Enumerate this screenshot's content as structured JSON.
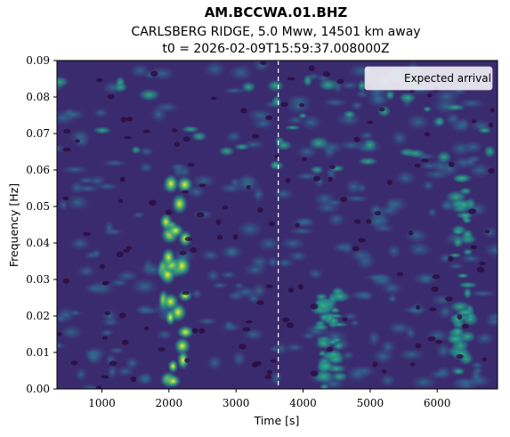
{
  "chart_data": {
    "type": "heatmap",
    "title": "AM.BCCWA.01.BHZ",
    "subtitle_line1": "CARLSBERG RIDGE, 5.0 Mww, 14501 km away",
    "subtitle_line2": "t0 = 2026-02-09T15:59:37.008000Z",
    "xlabel": "Time [s]",
    "ylabel": "Frequency [Hz]",
    "xlim": [
      330,
      6900
    ],
    "ylim": [
      0,
      0.09
    ],
    "x_ticks": [
      1000,
      2000,
      3000,
      4000,
      5000,
      6000
    ],
    "x_tick_labels": [
      "1000",
      "2000",
      "3000",
      "4000",
      "5000",
      "6000"
    ],
    "y_ticks": [
      0,
      0.01,
      0.02,
      0.03,
      0.04,
      0.05,
      0.06,
      0.07,
      0.08,
      0.09
    ],
    "y_tick_labels": [
      "0.00",
      "0.01",
      "0.02",
      "0.03",
      "0.04",
      "0.05",
      "0.06",
      "0.07",
      "0.08",
      "0.09"
    ],
    "colormap": "viridis",
    "grid": false,
    "expected_arrival": {
      "time": 3630,
      "label": "Expected arrival",
      "color": "#ffffff"
    },
    "legend": {
      "location": "upper right",
      "entries": [
        "Expected arrival"
      ]
    },
    "energy_features": [
      {
        "time_start": 1900,
        "time_end": 2250,
        "freq_start": 0.0,
        "freq_end": 0.062,
        "level": "high"
      },
      {
        "time_start": 330,
        "time_end": 6900,
        "freq_start": 0.06,
        "freq_end": 0.085,
        "level": "medium"
      },
      {
        "time_start": 4250,
        "time_end": 4550,
        "freq_start": 0.0,
        "freq_end": 0.03,
        "level": "medium"
      },
      {
        "time_start": 6250,
        "time_end": 6500,
        "freq_start": 0.0,
        "freq_end": 0.06,
        "level": "medium"
      }
    ]
  }
}
